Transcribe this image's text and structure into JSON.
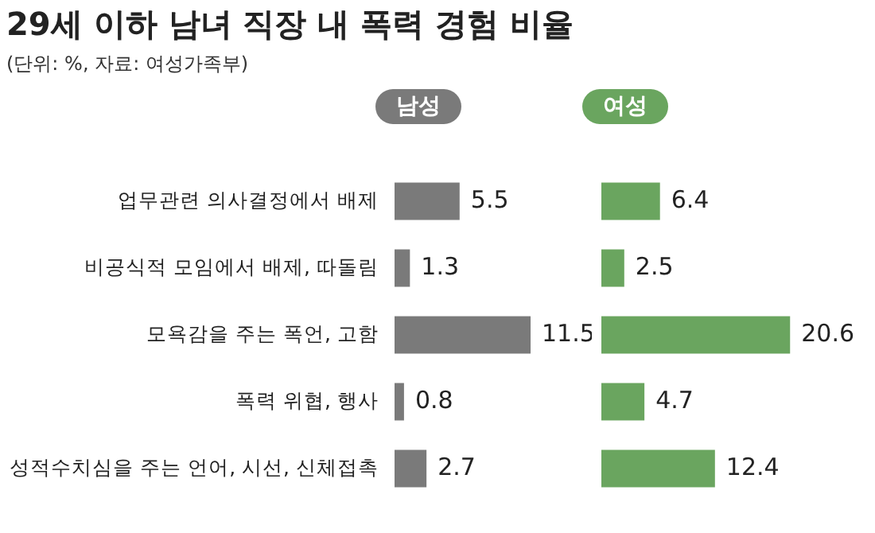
{
  "chart_data": [
    {
      "type": "bar",
      "orientation": "horizontal",
      "title": "29세 이하 남녀 직장 내 폭력 경험 비율",
      "subtitle": "(단위: %, 자료: 여성가족부)",
      "categories": [
        "업무관련 의사결정에서 배제",
        "비공식적 모임에서 배제, 따돌림",
        "모욕감을 주는 폭언, 고함",
        "폭력 위협, 행사",
        "성적수치심을 주는 언어, 시선, 신체접촉"
      ],
      "series": [
        {
          "name": "남성",
          "color": "#7a7a7a",
          "values": [
            5.5,
            1.3,
            11.5,
            0.8,
            2.7
          ]
        }
      ],
      "data_labels": true,
      "legend": "top",
      "tick_labels": "y"
    },
    {
      "type": "bar",
      "orientation": "horizontal",
      "categories": [
        null,
        null,
        null,
        null,
        null
      ],
      "series": [
        {
          "name": "여성",
          "color": "#6aa55f",
          "values": [
            6.4,
            2.5,
            20.6,
            4.7,
            12.4
          ]
        }
      ],
      "data_labels": true,
      "legend": "top",
      "tick_labels": false
    }
  ]
}
